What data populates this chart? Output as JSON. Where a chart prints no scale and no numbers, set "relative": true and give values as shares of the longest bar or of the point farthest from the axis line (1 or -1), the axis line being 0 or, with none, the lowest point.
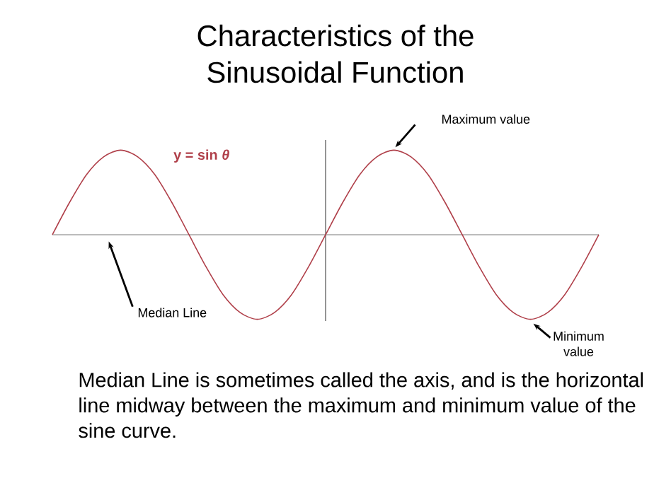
{
  "chart_data": {
    "type": "line",
    "title": "Characteristics of the\nSinusoidal Function",
    "relative": true,
    "categories": [
      null,
      null,
      null,
      null,
      null,
      null,
      null,
      null,
      null,
      null,
      null,
      null,
      null,
      null,
      null,
      null,
      null,
      null,
      null,
      null,
      null,
      null,
      null,
      null,
      null,
      null,
      null,
      null,
      null,
      null,
      null,
      null,
      null
    ],
    "series": [
      {
        "name": "y = sin *θ*",
        "color": "#b0404a",
        "values": [
          0,
          0.38,
          0.71,
          0.92,
          1,
          0.92,
          0.71,
          0.38,
          0,
          -0.38,
          -0.71,
          -0.92,
          -1,
          -0.92,
          -0.71,
          -0.38,
          0,
          0.38,
          0.71,
          0.92,
          1,
          0.92,
          0.71,
          0.38,
          0,
          -0.38,
          -0.71,
          -0.92,
          -1,
          -0.92,
          -0.71,
          -0.38,
          0
        ]
      }
    ],
    "marker": "none",
    "line_style": "solid",
    "legend": false,
    "annotations": [
      "Maximum value",
      "Median Line",
      "Minimum value",
      "Median Line is sometimes called the axis, and is the horizontal line midway between the maximum and minimum value of the sine curve."
    ]
  }
}
